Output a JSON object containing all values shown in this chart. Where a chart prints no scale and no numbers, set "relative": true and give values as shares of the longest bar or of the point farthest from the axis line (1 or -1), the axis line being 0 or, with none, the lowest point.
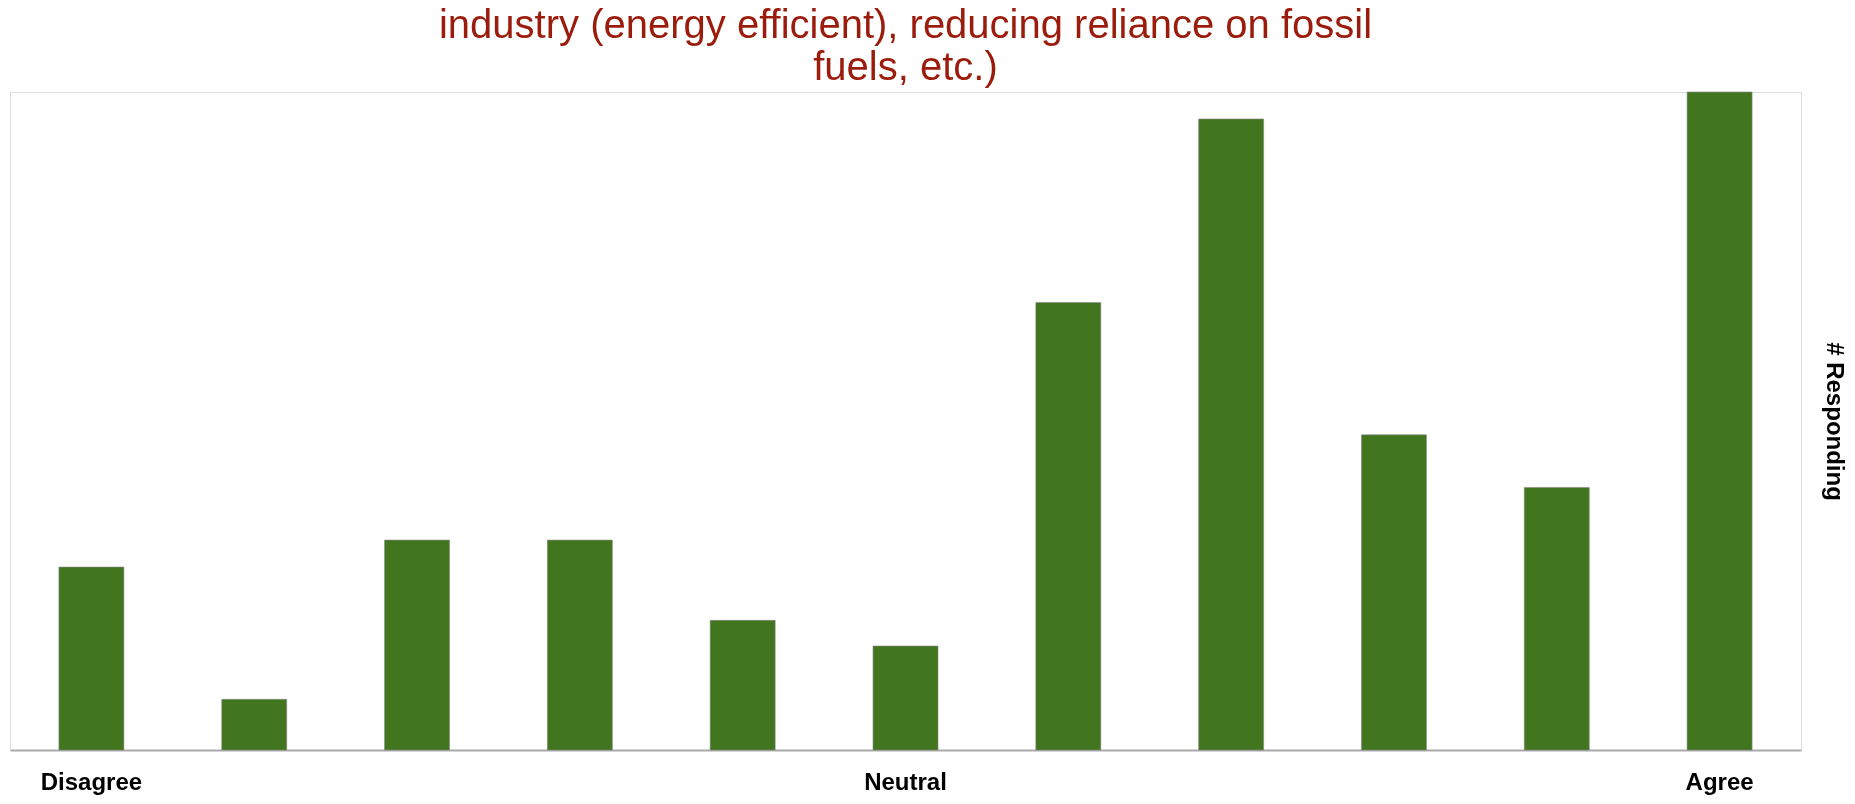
{
  "chart_data": {
    "type": "bar",
    "title": [
      "industry (energy efficient), reducing reliance on fossil",
      "fuels, etc.)"
    ],
    "ylabel": "# Responding",
    "categories": [
      "Disagree",
      null,
      null,
      null,
      null,
      "Neutral",
      null,
      null,
      null,
      null,
      "Agree"
    ],
    "values": [
      0.278,
      0.077,
      0.319,
      0.319,
      0.197,
      0.158,
      0.68,
      0.959,
      0.479,
      0.399,
      1
    ],
    "color": "#41761e",
    "relative": true
  }
}
